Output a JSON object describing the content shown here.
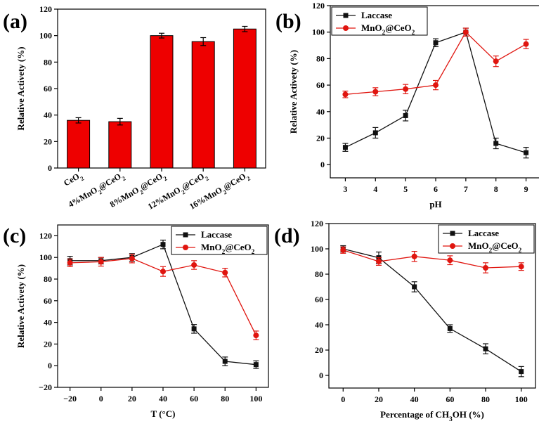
{
  "colors": {
    "black_series": "#111111",
    "red_series": "#e0150f",
    "bar_fill": "#ee0000"
  },
  "chart_data": [
    {
      "id": "a",
      "type": "bar",
      "panel_label": "(a)",
      "ylabel": "Relative Activety (%)",
      "xlabel": "",
      "categories": [
        {
          "parts": [
            {
              "t": "CeO"
            },
            {
              "t": "2",
              "sub": true
            }
          ]
        },
        {
          "parts": [
            {
              "t": "4%MnO"
            },
            {
              "t": "2",
              "sub": true
            },
            {
              "t": "@CeO"
            },
            {
              "t": "2",
              "sub": true
            }
          ]
        },
        {
          "parts": [
            {
              "t": "8%MnO"
            },
            {
              "t": "2",
              "sub": true
            },
            {
              "t": "@CeO"
            },
            {
              "t": "2",
              "sub": true
            }
          ]
        },
        {
          "parts": [
            {
              "t": "12%MnO"
            },
            {
              "t": "2",
              "sub": true
            },
            {
              "t": "@CeO"
            },
            {
              "t": "2",
              "sub": true
            }
          ]
        },
        {
          "parts": [
            {
              "t": "16%MnO"
            },
            {
              "t": "2",
              "sub": true
            },
            {
              "t": "@CeO"
            },
            {
              "t": "2",
              "sub": true
            }
          ]
        }
      ],
      "values": [
        36,
        35,
        100,
        95.5,
        105
      ],
      "errors": [
        2,
        2.5,
        1.8,
        3,
        2
      ],
      "ylim": [
        0,
        120
      ],
      "yticks": [
        0,
        20,
        40,
        60,
        80,
        100,
        120
      ]
    },
    {
      "id": "b",
      "type": "line",
      "panel_label": "(b)",
      "ylabel": "Relative Activety (%)",
      "xlabel": "pH",
      "xlim": [
        2.5,
        9.5
      ],
      "xticks": [
        3,
        4,
        5,
        6,
        7,
        8,
        9
      ],
      "ylim": [
        -10,
        120
      ],
      "yticks": [
        0,
        20,
        40,
        60,
        80,
        100,
        120
      ],
      "legend_position": "top-left",
      "series": [
        {
          "name": "Laccase",
          "name_parts": [
            {
              "t": "Laccase"
            }
          ],
          "color_key": "black_series",
          "marker": "square",
          "x": [
            3,
            4,
            5,
            6,
            7,
            8,
            9
          ],
          "y": [
            13,
            24,
            37,
            92,
            100,
            16,
            9
          ],
          "err": [
            3,
            4,
            4,
            3,
            3,
            4,
            4
          ]
        },
        {
          "name": "MnO2@CeO2",
          "name_parts": [
            {
              "t": "MnO"
            },
            {
              "t": "2",
              "sub": true
            },
            {
              "t": "@CeO"
            },
            {
              "t": "2",
              "sub": true
            }
          ],
          "color_key": "red_series",
          "marker": "circle",
          "x": [
            3,
            4,
            5,
            6,
            7,
            8,
            9
          ],
          "y": [
            53,
            55,
            57,
            60,
            100,
            78,
            91
          ],
          "err": [
            2.5,
            3,
            3.5,
            3.5,
            3,
            4,
            3.5
          ]
        }
      ]
    },
    {
      "id": "c",
      "type": "line",
      "panel_label": "(c)",
      "ylabel": "Relative Activety (%)",
      "xlabel": "T (°C)",
      "xlim": [
        -28,
        108
      ],
      "xticks": [
        -20,
        0,
        20,
        40,
        60,
        80,
        100
      ],
      "ylim": [
        -20,
        130
      ],
      "yticks": [
        -20,
        0,
        20,
        40,
        60,
        80,
        100,
        120
      ],
      "legend_position": "top-right",
      "series": [
        {
          "name": "Laccase",
          "name_parts": [
            {
              "t": "Laccase"
            }
          ],
          "color_key": "black_series",
          "marker": "square",
          "x": [
            -20,
            0,
            20,
            40,
            60,
            80,
            100
          ],
          "y": [
            97,
            97,
            100,
            112,
            34,
            4,
            1
          ],
          "err": [
            4,
            3,
            3.5,
            4,
            4,
            4,
            3.5
          ]
        },
        {
          "name": "MnO2@CeO2",
          "name_parts": [
            {
              "t": "MnO"
            },
            {
              "t": "2",
              "sub": true
            },
            {
              "t": "@CeO"
            },
            {
              "t": "2",
              "sub": true
            }
          ],
          "color_key": "red_series",
          "marker": "circle",
          "x": [
            -20,
            0,
            20,
            40,
            60,
            80,
            100
          ],
          "y": [
            95,
            96,
            99,
            87,
            93,
            86,
            28
          ],
          "err": [
            3.5,
            4,
            4,
            4.5,
            4,
            4,
            4
          ]
        }
      ]
    },
    {
      "id": "d",
      "type": "line",
      "panel_label": "(d)",
      "ylabel": "",
      "xlabel_parts": [
        {
          "t": "Percentage of CH"
        },
        {
          "t": "3",
          "sub": true
        },
        {
          "t": "OH (%)"
        }
      ],
      "xlim": [
        -8,
        108
      ],
      "xticks": [
        0,
        20,
        40,
        60,
        80,
        100
      ],
      "ylim": [
        -10,
        120
      ],
      "yticks": [
        0,
        20,
        40,
        60,
        80,
        100,
        120
      ],
      "legend_position": "top-right",
      "series": [
        {
          "name": "Laccase",
          "name_parts": [
            {
              "t": "Laccase"
            }
          ],
          "color_key": "black_series",
          "marker": "square",
          "x": [
            0,
            20,
            40,
            60,
            80,
            100
          ],
          "y": [
            100,
            93,
            70,
            37,
            21,
            3
          ],
          "err": [
            2.5,
            4.5,
            4,
            3,
            4,
            4
          ]
        },
        {
          "name": "MnO2@CeO2",
          "name_parts": [
            {
              "t": "MnO"
            },
            {
              "t": "2",
              "sub": true
            },
            {
              "t": "@CeO"
            },
            {
              "t": "2",
              "sub": true
            }
          ],
          "color_key": "red_series",
          "marker": "circle",
          "x": [
            0,
            20,
            40,
            60,
            80,
            100
          ],
          "y": [
            99,
            90,
            94,
            91,
            85,
            86
          ],
          "err": [
            2.5,
            3,
            4,
            3.5,
            4,
            3
          ]
        }
      ]
    }
  ]
}
